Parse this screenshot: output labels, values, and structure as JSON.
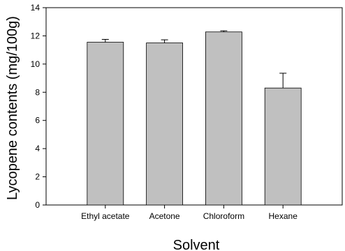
{
  "chart_data": {
    "type": "bar",
    "xlabel": "Solvent",
    "ylabel": "Lycopene contents (mg/100g)",
    "categories": [
      "Ethyl acetate",
      "Acetone",
      "Chloroform",
      "Hexane"
    ],
    "values": [
      11.55,
      11.5,
      12.28,
      8.3
    ],
    "errors": [
      0.2,
      0.22,
      0.08,
      1.05
    ],
    "ylim": [
      0,
      14
    ],
    "yticks": [
      "0",
      "2",
      "4",
      "6",
      "8",
      "10",
      "12",
      "14"
    ],
    "grid": false,
    "bar_color": "#c0c0c0"
  }
}
